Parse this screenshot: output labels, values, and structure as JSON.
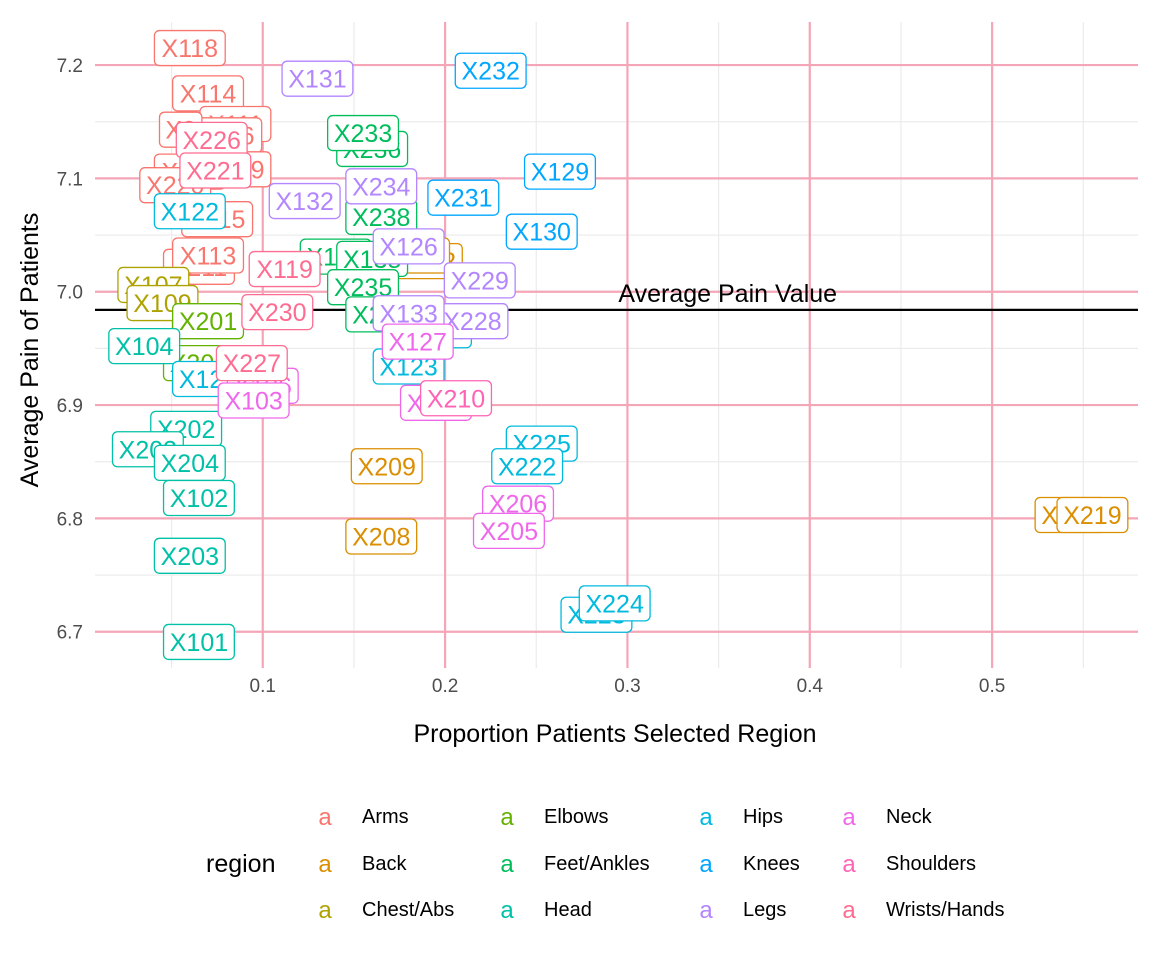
{
  "chart_data": {
    "type": "scatter",
    "xlabel": "Proportion Patients Selected Region",
    "ylabel": "Average Pain of Patients",
    "xlim": [
      0.008,
      0.58
    ],
    "ylim": [
      6.668,
      7.238
    ],
    "x_ticks": [
      0.1,
      0.2,
      0.3,
      0.4,
      0.5
    ],
    "x_tick_labels": [
      "0.1",
      "0.2",
      "0.3",
      "0.4",
      "0.5"
    ],
    "y_ticks": [
      6.7,
      6.8,
      6.9,
      7.0,
      7.1,
      7.2
    ],
    "y_tick_labels": [
      "6.7",
      "6.8",
      "6.9",
      "7.0",
      "7.1",
      "7.2"
    ],
    "grid": true,
    "reference_line": {
      "y": 6.984,
      "label": "Average Pain Value",
      "label_x": 0.355
    },
    "legend": {
      "title": "region",
      "position": "bottom",
      "key_glyph": "a",
      "entries": [
        {
          "name": "Arms",
          "color": "#F8766D"
        },
        {
          "name": "Back",
          "color": "#DB8E00"
        },
        {
          "name": "Chest/Abs",
          "color": "#AEA200"
        },
        {
          "name": "Elbows",
          "color": "#64B200"
        },
        {
          "name": "Feet/Ankles",
          "color": "#00BD5C"
        },
        {
          "name": "Head",
          "color": "#00C1A7"
        },
        {
          "name": "Hips",
          "color": "#00BADE"
        },
        {
          "name": "Knees",
          "color": "#00A6FF"
        },
        {
          "name": "Legs",
          "color": "#B385FF"
        },
        {
          "name": "Neck",
          "color": "#EF67EB"
        },
        {
          "name": "Shoulders",
          "color": "#FF63B6"
        },
        {
          "name": "Wrists/Hands",
          "color": "#FF6C91"
        }
      ]
    },
    "points": [
      {
        "label": "X118",
        "x": 0.06,
        "y": 7.215,
        "region": "Arms"
      },
      {
        "label": "X114",
        "x": 0.07,
        "y": 7.175,
        "region": "Arms"
      },
      {
        "label": "X111",
        "x": 0.085,
        "y": 7.148,
        "region": "Arms"
      },
      {
        "label": "X116",
        "x": 0.08,
        "y": 7.138,
        "region": "Arms"
      },
      {
        "label": "X2",
        "x": 0.055,
        "y": 7.143,
        "region": "Arms"
      },
      {
        "label": "X219",
        "x": 0.085,
        "y": 7.108,
        "region": "Arms"
      },
      {
        "label": "X117",
        "x": 0.06,
        "y": 7.106,
        "region": "Arms"
      },
      {
        "label": "X220",
        "x": 0.052,
        "y": 7.094,
        "region": "Arms"
      },
      {
        "label": "X115",
        "x": 0.075,
        "y": 7.064,
        "region": "Arms"
      },
      {
        "label": "X211",
        "x": 0.065,
        "y": 7.022,
        "region": "Arms"
      },
      {
        "label": "X113",
        "x": 0.07,
        "y": 7.032,
        "region": "Arms"
      },
      {
        "label": "X212",
        "x": 0.19,
        "y": 7.027,
        "region": "Back"
      },
      {
        "label": "X213",
        "x": 0.183,
        "y": 7.032,
        "region": "Back"
      },
      {
        "label": "X209",
        "x": 0.168,
        "y": 6.846,
        "region": "Back"
      },
      {
        "label": "X208",
        "x": 0.165,
        "y": 6.784,
        "region": "Back"
      },
      {
        "label": "X217",
        "x": 0.543,
        "y": 6.803,
        "region": "Back"
      },
      {
        "label": "X219",
        "x": 0.555,
        "y": 6.803,
        "region": "Back"
      },
      {
        "label": "X107",
        "x": 0.04,
        "y": 7.006,
        "region": "Chest/Abs"
      },
      {
        "label": "X109",
        "x": 0.045,
        "y": 6.99,
        "region": "Chest/Abs"
      },
      {
        "label": "X201",
        "x": 0.07,
        "y": 6.974,
        "region": "Elbows"
      },
      {
        "label": "X205",
        "x": 0.065,
        "y": 6.937,
        "region": "Elbows"
      },
      {
        "label": "X236",
        "x": 0.16,
        "y": 7.126,
        "region": "Feet/Ankles"
      },
      {
        "label": "X233",
        "x": 0.155,
        "y": 7.14,
        "region": "Feet/Ankles"
      },
      {
        "label": "X238",
        "x": 0.165,
        "y": 7.066,
        "region": "Feet/Ankles"
      },
      {
        "label": "X137",
        "x": 0.14,
        "y": 7.031,
        "region": "Feet/Ankles"
      },
      {
        "label": "X138",
        "x": 0.16,
        "y": 7.029,
        "region": "Feet/Ankles"
      },
      {
        "label": "X235",
        "x": 0.155,
        "y": 7.004,
        "region": "Feet/Ankles"
      },
      {
        "label": "X237",
        "x": 0.165,
        "y": 6.98,
        "region": "Feet/Ankles"
      },
      {
        "label": "X104",
        "x": 0.035,
        "y": 6.952,
        "region": "Head"
      },
      {
        "label": "X202",
        "x": 0.058,
        "y": 6.879,
        "region": "Head"
      },
      {
        "label": "X203",
        "x": 0.037,
        "y": 6.861,
        "region": "Head"
      },
      {
        "label": "X204",
        "x": 0.06,
        "y": 6.849,
        "region": "Head"
      },
      {
        "label": "X102",
        "x": 0.065,
        "y": 6.818,
        "region": "Head"
      },
      {
        "label": "X203",
        "x": 0.06,
        "y": 6.767,
        "region": "Head"
      },
      {
        "label": "X101",
        "x": 0.065,
        "y": 6.691,
        "region": "Head"
      },
      {
        "label": "X122",
        "x": 0.06,
        "y": 7.071,
        "region": "Hips"
      },
      {
        "label": "X121",
        "x": 0.07,
        "y": 6.923,
        "region": "Hips"
      },
      {
        "label": "X123",
        "x": 0.18,
        "y": 6.934,
        "region": "Hips"
      },
      {
        "label": "X124",
        "x": 0.195,
        "y": 6.966,
        "region": "Hips"
      },
      {
        "label": "X225",
        "x": 0.253,
        "y": 6.866,
        "region": "Hips"
      },
      {
        "label": "X222",
        "x": 0.245,
        "y": 6.846,
        "region": "Hips"
      },
      {
        "label": "X223",
        "x": 0.283,
        "y": 6.715,
        "region": "Hips"
      },
      {
        "label": "X224",
        "x": 0.293,
        "y": 6.725,
        "region": "Hips"
      },
      {
        "label": "X232",
        "x": 0.225,
        "y": 7.195,
        "region": "Knees"
      },
      {
        "label": "X129",
        "x": 0.263,
        "y": 7.106,
        "region": "Knees"
      },
      {
        "label": "X231",
        "x": 0.21,
        "y": 7.083,
        "region": "Knees"
      },
      {
        "label": "X130",
        "x": 0.253,
        "y": 7.053,
        "region": "Knees"
      },
      {
        "label": "X131",
        "x": 0.13,
        "y": 7.188,
        "region": "Legs"
      },
      {
        "label": "X234",
        "x": 0.165,
        "y": 7.093,
        "region": "Legs"
      },
      {
        "label": "X132",
        "x": 0.123,
        "y": 7.08,
        "region": "Legs"
      },
      {
        "label": "X229",
        "x": 0.219,
        "y": 7.01,
        "region": "Legs"
      },
      {
        "label": "X228",
        "x": 0.215,
        "y": 6.974,
        "region": "Legs"
      },
      {
        "label": "X133",
        "x": 0.18,
        "y": 6.981,
        "region": "Legs"
      },
      {
        "label": "X126",
        "x": 0.18,
        "y": 7.04,
        "region": "Legs"
      },
      {
        "label": "X106",
        "x": 0.1,
        "y": 6.917,
        "region": "Neck"
      },
      {
        "label": "X103",
        "x": 0.095,
        "y": 6.904,
        "region": "Neck"
      },
      {
        "label": "X210",
        "x": 0.195,
        "y": 6.902,
        "region": "Neck"
      },
      {
        "label": "X206",
        "x": 0.24,
        "y": 6.813,
        "region": "Neck"
      },
      {
        "label": "X205",
        "x": 0.235,
        "y": 6.789,
        "region": "Neck"
      },
      {
        "label": "X127",
        "x": 0.185,
        "y": 6.956,
        "region": "Neck"
      },
      {
        "label": "X210",
        "x": 0.206,
        "y": 6.906,
        "region": "Shoulders"
      },
      {
        "label": "X226",
        "x": 0.072,
        "y": 7.134,
        "region": "Wrists/Hands"
      },
      {
        "label": "X221",
        "x": 0.074,
        "y": 7.107,
        "region": "Wrists/Hands"
      },
      {
        "label": "X119",
        "x": 0.112,
        "y": 7.02,
        "region": "Wrists/Hands"
      },
      {
        "label": "X230",
        "x": 0.108,
        "y": 6.982,
        "region": "Wrists/Hands"
      },
      {
        "label": "X227",
        "x": 0.094,
        "y": 6.937,
        "region": "Wrists/Hands"
      }
    ]
  }
}
